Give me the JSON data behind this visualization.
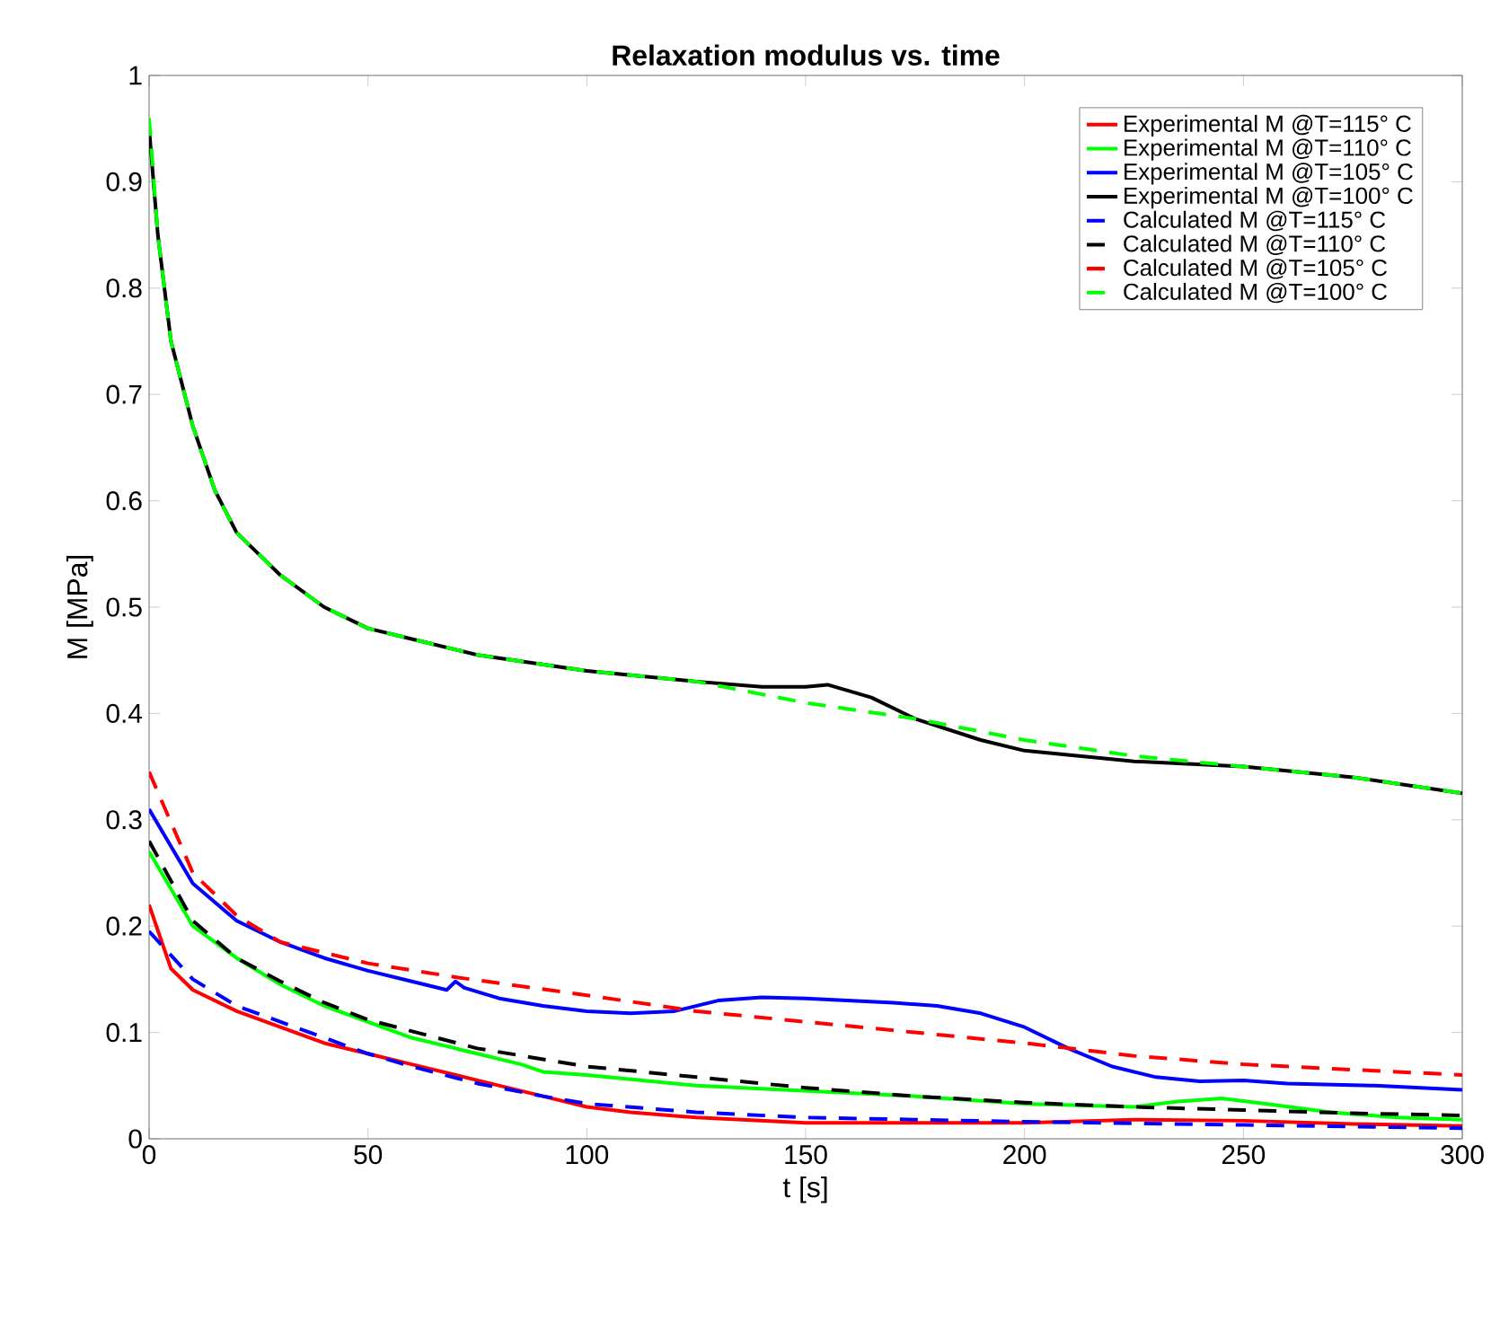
{
  "chart_data": {
    "type": "line",
    "title": "Relaxation modulus vs. time",
    "xlabel": "t [s]",
    "ylabel": "M [MPa]",
    "xlim": [
      0,
      300
    ],
    "ylim": [
      0,
      1
    ],
    "xticks": [
      0,
      50,
      100,
      150,
      200,
      250,
      300
    ],
    "yticks": [
      0,
      0.1,
      0.2,
      0.3,
      0.4,
      0.5,
      0.6,
      0.7,
      0.8,
      0.9,
      1
    ],
    "grid": false,
    "legend": "top right",
    "marker": "none",
    "series": [
      {
        "name": "Experimental M @T=115° C",
        "color": "#ff0000",
        "line_style": "solid",
        "x": [
          0,
          5,
          10,
          20,
          30,
          40,
          50,
          60,
          75,
          90,
          100,
          110,
          125,
          150,
          175,
          200,
          225,
          250,
          275,
          300
        ],
        "values": [
          0.22,
          0.16,
          0.14,
          0.12,
          0.105,
          0.09,
          0.08,
          0.07,
          0.055,
          0.04,
          0.03,
          0.025,
          0.02,
          0.015,
          0.015,
          0.015,
          0.018,
          0.017,
          0.014,
          0.012
        ]
      },
      {
        "name": "Experimental M @T=110° C",
        "color": "#00ff00",
        "line_style": "solid",
        "x": [
          0,
          10,
          20,
          30,
          40,
          50,
          60,
          75,
          85,
          90,
          100,
          125,
          150,
          175,
          200,
          225,
          235,
          245,
          255,
          270,
          285,
          300
        ],
        "values": [
          0.27,
          0.2,
          0.17,
          0.145,
          0.125,
          0.11,
          0.095,
          0.08,
          0.07,
          0.063,
          0.06,
          0.05,
          0.045,
          0.04,
          0.033,
          0.03,
          0.035,
          0.038,
          0.033,
          0.025,
          0.02,
          0.018
        ]
      },
      {
        "name": "Experimental M @T=105° C",
        "color": "#0000ff",
        "line_style": "solid",
        "x": [
          0,
          10,
          20,
          30,
          40,
          50,
          60,
          68,
          70,
          72,
          80,
          90,
          100,
          110,
          120,
          130,
          140,
          150,
          160,
          170,
          180,
          190,
          200,
          210,
          220,
          230,
          240,
          250,
          260,
          280,
          300
        ],
        "values": [
          0.31,
          0.24,
          0.205,
          0.185,
          0.17,
          0.158,
          0.148,
          0.14,
          0.148,
          0.142,
          0.132,
          0.125,
          0.12,
          0.118,
          0.12,
          0.13,
          0.133,
          0.132,
          0.13,
          0.128,
          0.125,
          0.118,
          0.105,
          0.085,
          0.068,
          0.058,
          0.054,
          0.055,
          0.052,
          0.05,
          0.046
        ]
      },
      {
        "name": "Experimental M @T=100° C",
        "color": "#000000",
        "line_style": "solid",
        "x": [
          0,
          2,
          5,
          10,
          15,
          20,
          30,
          40,
          50,
          60,
          75,
          100,
          125,
          140,
          150,
          155,
          165,
          175,
          190,
          200,
          225,
          250,
          275,
          300
        ],
        "values": [
          0.95,
          0.85,
          0.75,
          0.67,
          0.61,
          0.57,
          0.53,
          0.5,
          0.48,
          0.47,
          0.455,
          0.44,
          0.43,
          0.425,
          0.425,
          0.427,
          0.415,
          0.395,
          0.375,
          0.365,
          0.355,
          0.35,
          0.34,
          0.325
        ]
      },
      {
        "name": "Calculated M @T=115° C",
        "color": "#0000ff",
        "line_style": "dashed",
        "x": [
          0,
          10,
          20,
          30,
          40,
          50,
          60,
          75,
          90,
          100,
          125,
          150,
          175,
          200,
          250,
          300
        ],
        "values": [
          0.195,
          0.15,
          0.125,
          0.11,
          0.095,
          0.08,
          0.068,
          0.052,
          0.04,
          0.033,
          0.025,
          0.02,
          0.018,
          0.016,
          0.013,
          0.01
        ]
      },
      {
        "name": "Calculated M @T=110° C",
        "color": "#000000",
        "line_style": "dashed",
        "x": [
          0,
          10,
          20,
          30,
          40,
          50,
          75,
          100,
          125,
          150,
          175,
          200,
          225,
          250,
          275,
          300
        ],
        "values": [
          0.28,
          0.205,
          0.17,
          0.148,
          0.128,
          0.112,
          0.085,
          0.068,
          0.058,
          0.048,
          0.04,
          0.034,
          0.03,
          0.027,
          0.024,
          0.022
        ]
      },
      {
        "name": "Calculated M @T=105° C",
        "color": "#ff0000",
        "line_style": "dashed",
        "x": [
          0,
          10,
          20,
          30,
          50,
          70,
          100,
          125,
          150,
          175,
          200,
          225,
          250,
          275,
          300
        ],
        "values": [
          0.345,
          0.25,
          0.21,
          0.185,
          0.165,
          0.152,
          0.135,
          0.12,
          0.11,
          0.1,
          0.09,
          0.078,
          0.07,
          0.065,
          0.06
        ]
      },
      {
        "name": "Calculated M @T=100° C",
        "color": "#00ff00",
        "line_style": "dashed",
        "x": [
          0,
          2,
          5,
          10,
          15,
          20,
          30,
          40,
          50,
          60,
          75,
          100,
          125,
          150,
          175,
          200,
          225,
          250,
          275,
          300
        ],
        "values": [
          0.96,
          0.85,
          0.75,
          0.67,
          0.61,
          0.57,
          0.53,
          0.5,
          0.48,
          0.47,
          0.455,
          0.44,
          0.43,
          0.41,
          0.395,
          0.375,
          0.36,
          0.35,
          0.34,
          0.325
        ]
      }
    ]
  }
}
